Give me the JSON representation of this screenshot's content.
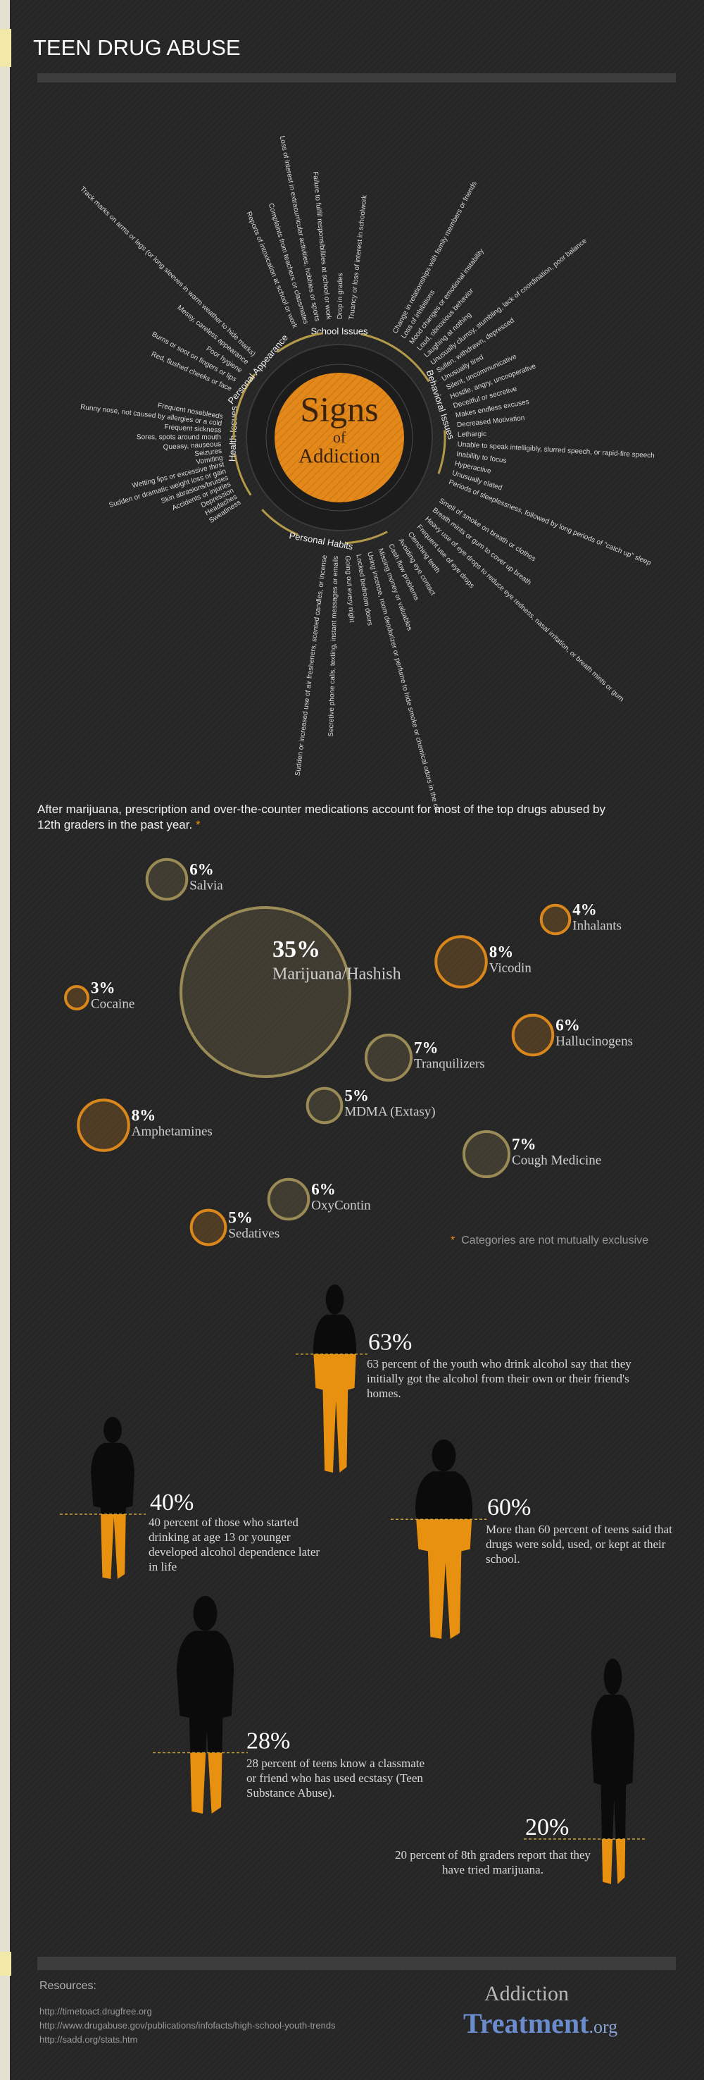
{
  "header": {
    "title": "TEEN DRUG ABUSE"
  },
  "signs": {
    "center_top": "Signs",
    "center_mid": "of",
    "center_bottom": "Addiction",
    "categories": [
      {
        "name": "School Issues",
        "items": [
          "Truancy or loss of interest in schoolwork",
          "Drop in grades",
          "Failure to fulfill responsibilities at school or work",
          "Loss of interest in extracurricular activities, hobbies or sports",
          "Complaints from teachers or classmates",
          "Reports of intoxication at school or work"
        ]
      },
      {
        "name": "Behavioral Issues",
        "items": [
          "Change in relationships with family members or friends",
          "Loss of inhibitions",
          "Mood changes or emotional instability",
          "Loud, obnoxious behavior",
          "Laughing at nothing",
          "Unusually clumsy, stumbling, lack of coordination, poor balance",
          "Sullen, withdrawn, depressed",
          "Unusually tired",
          "Silent, uncommunicative",
          "Hostile, angry, uncooperative",
          "Deceitful or secretive",
          "Makes endless excuses",
          "Decreased Motivation",
          "Lethargic",
          "Unable to speak intelligibly, slurred speech, or rapid-fire speech",
          "Inability to focus",
          "Hyperactive",
          "Unusually elated",
          "Periods of sleeplessness, followed by long periods of \"catch up\" sleep"
        ]
      },
      {
        "name": "Personal Habits",
        "items": [
          "Smell of smoke on breath or clothes",
          "Breath mints or gum to cover up breath",
          "Heavy use of eye drops to reduce eye redness, nasal irritation, or breath mints or gum",
          "Frequent use of eye drops",
          "Clenching teeth",
          "Avoiding eye contact",
          "Cash flow problems",
          "Missing money or valuables",
          "Using incense, room deodorizer or perfume to hide smoke or chemical odors in the car",
          "Locked bedroom doors",
          "Going out every night",
          "Secretive phone calls, texting, instant messages or emails",
          "Sudden or increased use of air fresheners, scented candles, or incense"
        ]
      },
      {
        "name": "Health Issues",
        "items": [
          "Frequent nosebleeds",
          "Runny nose, not caused by allergies or a cold",
          "Frequent sickness",
          "Sores, spots around mouth",
          "Queasy, nauseous",
          "Seizures",
          "Vomiting",
          "Wetting lips or excessive thirst",
          "Sudden or dramatic weight loss or gain",
          "Skin abrasions/bruises",
          "Accidents or injuries",
          "Depression",
          "Headaches",
          "Sweatiness"
        ]
      },
      {
        "name": "Personal Appearance",
        "items": [
          "Track marks on arms or legs (or long sleeves in warm weather to hide marks)",
          "Messy, careless appearance",
          "Poor hygiene",
          "Burns or soot on fingers or lips",
          "Red, flushed cheeks or face"
        ]
      }
    ]
  },
  "drugs": {
    "intro": "After marijuana, prescription and over-the-counter medications account for most of the top drugs abused by 12th graders in the past year.",
    "asterisk": "*",
    "note": "Categories are not mutually exclusive",
    "items": [
      {
        "value": 6,
        "value_label": "6%",
        "name": "Salvia",
        "color": "#9a8a55"
      },
      {
        "value": 35,
        "value_label": "35%",
        "name": "Marijuana/Hashish",
        "color": "#9a8a55"
      },
      {
        "value": 4,
        "value_label": "4%",
        "name": "Inhalants",
        "color": "#d9871c"
      },
      {
        "value": 8,
        "value_label": "8%",
        "name": "Vicodin",
        "color": "#d9871c"
      },
      {
        "value": 3,
        "value_label": "3%",
        "name": "Cocaine",
        "color": "#d9871c"
      },
      {
        "value": 6,
        "value_label": "6%",
        "name": "Hallucinogens",
        "color": "#d9871c"
      },
      {
        "value": 7,
        "value_label": "7%",
        "name": "Tranquilizers",
        "color": "#9a8a55"
      },
      {
        "value": 5,
        "value_label": "5%",
        "name": "MDMA (Extasy)",
        "color": "#9a8a55"
      },
      {
        "value": 8,
        "value_label": "8%",
        "name": "Amphetamines",
        "color": "#d9871c"
      },
      {
        "value": 7,
        "value_label": "7%",
        "name": "Cough Medicine",
        "color": "#9a8a55"
      },
      {
        "value": 6,
        "value_label": "6%",
        "name": "OxyContin",
        "color": "#9a8a55"
      },
      {
        "value": 5,
        "value_label": "5%",
        "name": "Sedatives",
        "color": "#d9871c"
      }
    ]
  },
  "stats": {
    "color": "#e8900f",
    "items": [
      {
        "value": 63,
        "value_label": "63%",
        "text": "63 percent of the youth who drink alcohol say that they initially got the alcohol from their own or their friend's homes."
      },
      {
        "value": 40,
        "value_label": "40%",
        "text": "40 percent of those who started drinking at age 13 or younger developed alcohol dependence later in life"
      },
      {
        "value": 60,
        "value_label": "60%",
        "text": "More than 60 percent of teens said that drugs were sold, used, or kept at their school."
      },
      {
        "value": 28,
        "value_label": "28%",
        "text": "28 percent of teens know a classmate or friend who has used ecstasy (Teen Substance Abuse)."
      },
      {
        "value": 20,
        "value_label": "20%",
        "text": "20 percent of 8th graders report that they have tried marijuana."
      }
    ]
  },
  "resources": {
    "title": "Resources:",
    "links": [
      "http://timetoact.drugfree.org",
      "http://www.drugabuse.gov/publications/infofacts/high-school-youth-trends",
      "http://sadd.org/stats.htm"
    ]
  },
  "logo": {
    "top": "Addiction",
    "main": "Treatment",
    "suffix": ".org"
  }
}
